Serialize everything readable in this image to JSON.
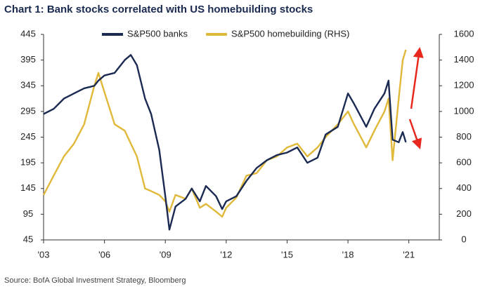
{
  "chart_data": {
    "type": "line",
    "title": "Chart 1: Bank stocks correlated with US homebuilding stocks",
    "source": "Source: BofA Global Investment Strategy, Bloomberg",
    "x": [
      2003,
      2003.5,
      2004,
      2004.5,
      2005,
      2005.5,
      2005.7,
      2006,
      2006.5,
      2007,
      2007.3,
      2007.6,
      2008,
      2008.3,
      2008.7,
      2009,
      2009.2,
      2009.5,
      2010,
      2010.3,
      2010.7,
      2011,
      2011.5,
      2011.8,
      2012,
      2012.5,
      2013,
      2013.5,
      2014,
      2014.5,
      2015,
      2015.5,
      2016,
      2016.5,
      2016.9,
      2017.5,
      2018,
      2018.3,
      2018.9,
      2019.3,
      2019.8,
      2020,
      2020.2,
      2020.5,
      2020.7,
      2020.85
    ],
    "series": [
      {
        "name": "S&P500 banks",
        "color": "#1b2a52",
        "values": [
          290,
          300,
          320,
          330,
          340,
          345,
          355,
          365,
          370,
          395,
          405,
          385,
          320,
          290,
          220,
          130,
          65,
          110,
          125,
          145,
          120,
          150,
          130,
          105,
          120,
          130,
          160,
          185,
          200,
          210,
          215,
          225,
          195,
          205,
          250,
          265,
          330,
          310,
          265,
          300,
          330,
          355,
          240,
          235,
          255,
          235
        ]
      },
      {
        "name": "S&P500 homebuilding (RHS)",
        "color": "#e0b83a",
        "axis": "y2",
        "values": [
          350,
          500,
          650,
          750,
          900,
          1200,
          1300,
          1150,
          900,
          850,
          750,
          650,
          400,
          380,
          350,
          300,
          220,
          350,
          320,
          400,
          250,
          280,
          220,
          180,
          250,
          330,
          500,
          520,
          620,
          650,
          720,
          750,
          650,
          720,
          800,
          900,
          1000,
          900,
          720,
          850,
          1000,
          1100,
          620,
          1100,
          1400,
          1480
        ]
      }
    ],
    "xlim": [
      2003,
      2022.5
    ],
    "xticks": [
      {
        "value": 2003,
        "label": "'03"
      },
      {
        "value": 2006,
        "label": "'06"
      },
      {
        "value": 2009,
        "label": "'09"
      },
      {
        "value": 2012,
        "label": "'12"
      },
      {
        "value": 2015,
        "label": "'15"
      },
      {
        "value": 2018,
        "label": "'18"
      },
      {
        "value": 2021,
        "label": "'21"
      }
    ],
    "ylim": [
      45,
      445
    ],
    "yticks": [
      45,
      95,
      145,
      195,
      245,
      295,
      345,
      395,
      445
    ],
    "y2lim": [
      0,
      1600
    ],
    "y2ticks": [
      0,
      200,
      400,
      600,
      800,
      1000,
      1200,
      1400,
      1600
    ],
    "grid": false
  }
}
